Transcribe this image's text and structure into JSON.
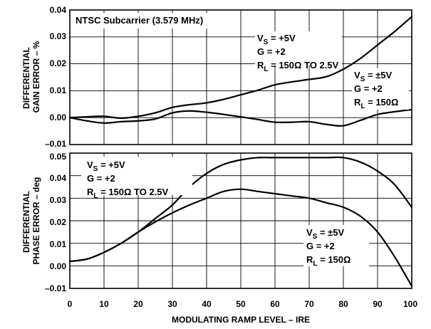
{
  "chart_data": [
    {
      "type": "line",
      "ylabel": [
        "DIFFERENTIAL",
        "GAIN ERROR – %"
      ],
      "xlim": [
        0,
        100
      ],
      "ylim": [
        -0.01,
        0.04
      ],
      "yticks": [
        "–0.01",
        "0.00",
        "0.01",
        "0.02",
        "0.03",
        "0.04"
      ],
      "grid": true,
      "title_box": "NTSC Subcarrier (3.579 MHz)",
      "series": [
        {
          "label_lines": [
            [
              "V",
              "S",
              " = +5V"
            ],
            [
              "G = +2"
            ],
            [
              "R",
              "L",
              " = 150Ω TO 2.5V"
            ]
          ],
          "x": [
            0,
            5,
            10,
            15,
            20,
            25,
            30,
            35,
            40,
            45,
            50,
            55,
            60,
            65,
            70,
            75,
            80,
            85,
            90,
            95,
            100
          ],
          "y": [
            0.0,
            0.0003,
            0.0005,
            -0.0002,
            0.0005,
            0.0018,
            0.0038,
            0.0048,
            0.0055,
            0.0068,
            0.0085,
            0.0102,
            0.0122,
            0.0133,
            0.0142,
            0.0152,
            0.018,
            0.022,
            0.027,
            0.032,
            0.0375
          ]
        },
        {
          "label_lines": [
            [
              "V",
              "S",
              " = ±5V"
            ],
            [
              "G = +2"
            ],
            [
              "R",
              "L",
              " = 150Ω"
            ]
          ],
          "x": [
            0,
            5,
            10,
            15,
            20,
            25,
            30,
            35,
            40,
            45,
            50,
            55,
            60,
            65,
            70,
            75,
            80,
            85,
            90,
            95,
            100
          ],
          "y": [
            0.0,
            -0.0012,
            -0.002,
            -0.0015,
            -0.0012,
            -0.0005,
            0.0018,
            0.0025,
            0.002,
            0.0012,
            0.0003,
            -0.0007,
            -0.0017,
            -0.0017,
            -0.0015,
            -0.0025,
            -0.003,
            -0.001,
            0.0012,
            0.0022,
            0.003
          ]
        }
      ]
    },
    {
      "type": "line",
      "ylabel": [
        "DIFFERENTIAL",
        "PHASE ERROR – deg"
      ],
      "xlabel": "MODULATING RAMP LEVEL – IRE",
      "xlim": [
        0,
        100
      ],
      "ylim": [
        -0.01,
        0.05
      ],
      "xticks": [
        "0",
        "10",
        "20",
        "30",
        "40",
        "50",
        "60",
        "70",
        "80",
        "90",
        "100"
      ],
      "yticks": [
        "–0.01",
        "0.00",
        "0.01",
        "0.02",
        "0.03",
        "0.04",
        "0.05"
      ],
      "grid": true,
      "series": [
        {
          "label_lines": [
            [
              "V",
              "S",
              " = +5V"
            ],
            [
              "G = +2"
            ],
            [
              "R",
              "L",
              " = 150Ω TO 2.5V"
            ]
          ],
          "x": [
            0,
            5,
            10,
            15,
            20,
            25,
            30,
            35,
            40,
            45,
            50,
            55,
            60,
            65,
            70,
            75,
            80,
            85,
            90,
            95,
            100
          ],
          "y": [
            0.002,
            0.003,
            0.006,
            0.01,
            0.015,
            0.021,
            0.027,
            0.035,
            0.041,
            0.045,
            0.047,
            0.048,
            0.048,
            0.048,
            0.048,
            0.048,
            0.048,
            0.046,
            0.042,
            0.036,
            0.026
          ]
        },
        {
          "label_lines": [
            [
              "V",
              "S",
              " = ±5V"
            ],
            [
              "G = +2"
            ],
            [
              "R",
              "L",
              " = 150Ω"
            ]
          ],
          "x": [
            0,
            5,
            10,
            15,
            20,
            25,
            30,
            35,
            40,
            45,
            50,
            55,
            60,
            65,
            70,
            75,
            80,
            85,
            90,
            95,
            100
          ],
          "y": [
            0.002,
            0.003,
            0.006,
            0.01,
            0.015,
            0.0195,
            0.0235,
            0.027,
            0.03,
            0.033,
            0.034,
            0.033,
            0.032,
            0.031,
            0.03,
            0.028,
            0.026,
            0.022,
            0.015,
            0.004,
            -0.009
          ]
        }
      ]
    }
  ]
}
